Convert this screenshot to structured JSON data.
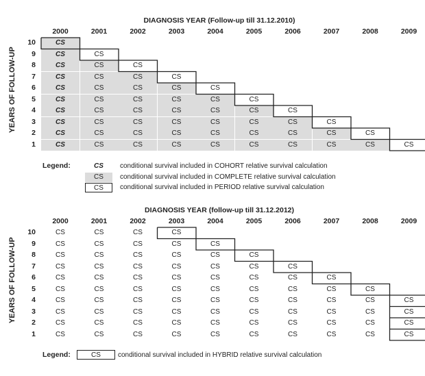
{
  "table1": {
    "title": "DIAGNOSIS YEAR (Follow-up till 31.12.2010)",
    "ylabel": "YEARS OF FOLLOW-UP",
    "years": [
      "2000",
      "2001",
      "2002",
      "2003",
      "2004",
      "2005",
      "2006",
      "2007",
      "2008",
      "2009"
    ],
    "rows": [
      "10",
      "9",
      "8",
      "7",
      "6",
      "5",
      "4",
      "3",
      "2",
      "1"
    ],
    "cell_text": "CS"
  },
  "legend1": {
    "label": "Legend:",
    "items": [
      {
        "symbol": "CS",
        "text": "conditional survival included in COHORT relative survival calculation"
      },
      {
        "symbol": "CS",
        "text": "conditional survival included in COMPLETE relative survival calculation"
      },
      {
        "symbol": "CS",
        "text": "conditional survival included in PERIOD relative survival calculation"
      }
    ]
  },
  "table2": {
    "title": "DIAGNOSIS YEAR (follow-up till 31.12.2012)",
    "ylabel": "YEARS OF FOLLOW-UP",
    "years": [
      "2000",
      "2001",
      "2002",
      "2003",
      "2004",
      "2005",
      "2006",
      "2007",
      "2008",
      "2009"
    ],
    "rows": [
      "10",
      "9",
      "8",
      "7",
      "6",
      "5",
      "4",
      "3",
      "2",
      "1"
    ],
    "cell_text": "CS"
  },
  "legend2": {
    "label": "Legend:",
    "items": [
      {
        "symbol": "CS",
        "text": "conditional survival included in HYBRID relative survival calculation"
      }
    ]
  }
}
